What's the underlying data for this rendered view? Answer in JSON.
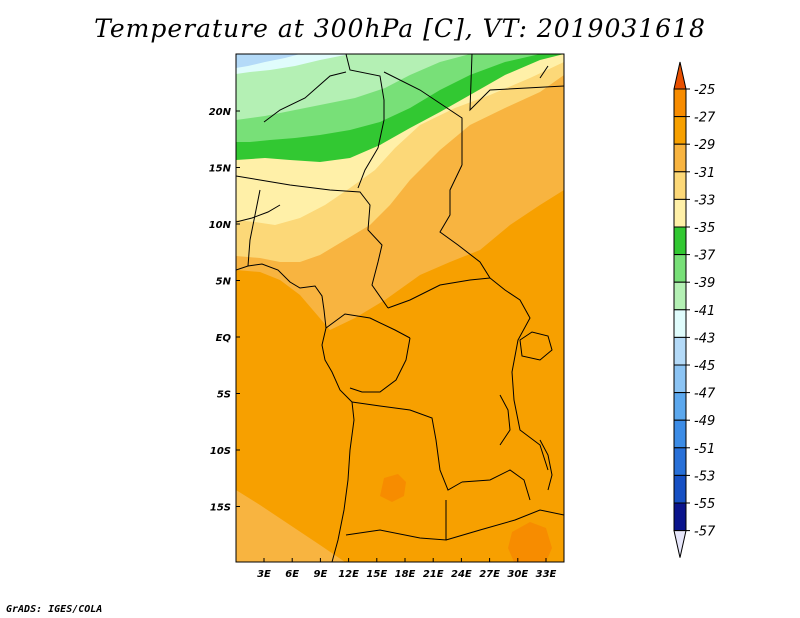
{
  "title": "Temperature at 300hPa [C], VT: 2019031618",
  "credit": "GrADS: IGES/COLA",
  "map": {
    "lat_labels": [
      "20N",
      "15N",
      "10N",
      "5N",
      "EQ",
      "5S",
      "10S",
      "15S"
    ],
    "lon_labels": [
      "3E",
      "6E",
      "9E",
      "12E",
      "15E",
      "18E",
      "21E",
      "24E",
      "27E",
      "30E",
      "33E"
    ]
  },
  "colorbar": {
    "labels": [
      "-25",
      "-27",
      "-29",
      "-31",
      "-33",
      "-35",
      "-37",
      "-39",
      "-41",
      "-43",
      "-45",
      "-47",
      "-49",
      "-51",
      "-53",
      "-55",
      "-57"
    ],
    "colors": [
      "#e85000",
      "#f78c00",
      "#f7a000",
      "#f8b440",
      "#fcd878",
      "#fff0a8",
      "#32c832",
      "#78e078",
      "#b4f0b4",
      "#e0fcfc",
      "#b4daf8",
      "#8cc4f4",
      "#5ca8ee",
      "#3c8ce6",
      "#2870d8",
      "#1650c4",
      "#0a148c",
      "#e6e6fa"
    ]
  }
}
